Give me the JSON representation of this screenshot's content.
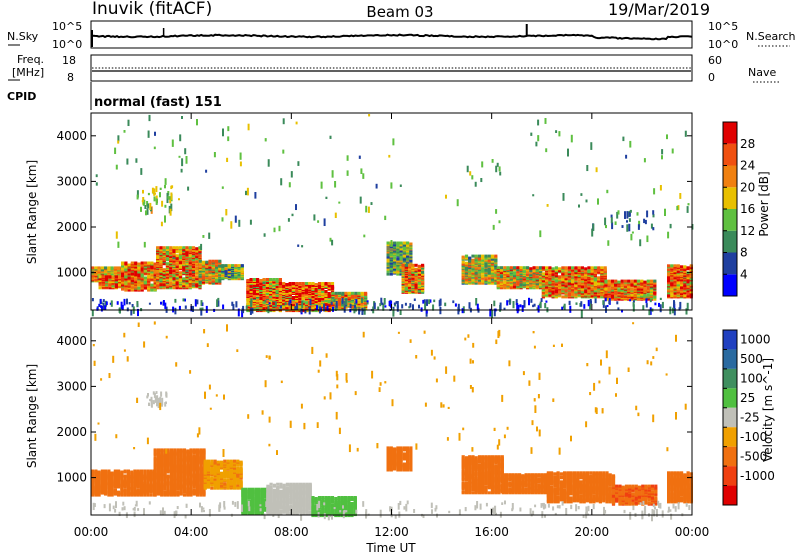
{
  "header": {
    "station": "Inuvik (fitACF)",
    "beam": "Beam 03",
    "date": "19/Mar/2019"
  },
  "panels": {
    "nsky": {
      "left_label": "N.Sky",
      "left_top": "10^5",
      "left_bottom": "10^0",
      "right_label": "N.Search",
      "right_top": "10^5",
      "right_bottom": "10^0"
    },
    "freq": {
      "left_label_1": "Freq.",
      "left_label_2": "[MHz]",
      "left_top": "18",
      "left_bottom": "8",
      "right_label": "Nave",
      "right_top": "60",
      "right_bottom": "0"
    },
    "cpid": {
      "label": "CPID",
      "text": "normal (fast) 151"
    }
  },
  "colors": {
    "power": [
      "#0000ff",
      "#1f3f9f",
      "#3a8a5a",
      "#5fc040",
      "#e8c000",
      "#f08010",
      "#f05010",
      "#e00000"
    ],
    "velocity": [
      "#2040c0",
      "#2a6aa0",
      "#3f8f5f",
      "#50c040",
      "#c0c0b8",
      "#f0a000",
      "#f07010",
      "#f04010",
      "#e00000"
    ]
  },
  "chart_data": [
    {
      "type": "heatmap",
      "name": "Power",
      "ylabel": "Slant Range [km]",
      "xlabel": "Time UT",
      "x_ticks": [
        "00:00",
        "04:00",
        "08:00",
        "12:00",
        "16:00",
        "20:00",
        "00:00"
      ],
      "y_ticks": [
        1000,
        2000,
        3000,
        4000
      ],
      "ylim": [
        180,
        4500
      ],
      "colorbar": {
        "label": "Power [dB]",
        "ticks": [
          "4",
          "8",
          "12",
          "16",
          "20",
          "24",
          "28"
        ],
        "range": [
          0,
          30
        ]
      },
      "regions": [
        {
          "t0": 0.0,
          "t1": 1.2,
          "r0": 850,
          "r1": 1150,
          "v": 18
        },
        {
          "t0": 0.3,
          "t1": 1.2,
          "r0": 700,
          "r1": 950,
          "v": 25
        },
        {
          "t0": 1.2,
          "t1": 2.6,
          "r0": 650,
          "r1": 1250,
          "v": 22
        },
        {
          "t0": 2.6,
          "t1": 4.3,
          "r0": 700,
          "r1": 1600,
          "v": 21
        },
        {
          "t0": 4.3,
          "t1": 5.2,
          "r0": 800,
          "r1": 1300,
          "v": 18
        },
        {
          "t0": 5.2,
          "t1": 6.0,
          "r0": 900,
          "r1": 1200,
          "v": 12
        },
        {
          "t0": 6.2,
          "t1": 7.5,
          "r0": 200,
          "r1": 900,
          "v": 21
        },
        {
          "t0": 7.5,
          "t1": 9.6,
          "r0": 200,
          "r1": 800,
          "v": 24
        },
        {
          "t0": 9.6,
          "t1": 11.0,
          "r0": 250,
          "r1": 600,
          "v": 18
        },
        {
          "t0": 11.8,
          "t1": 12.8,
          "r0": 1000,
          "r1": 1700,
          "v": 12
        },
        {
          "t0": 12.4,
          "t1": 13.2,
          "r0": 600,
          "r1": 1200,
          "v": 20
        },
        {
          "t0": 14.8,
          "t1": 16.2,
          "r0": 800,
          "r1": 1400,
          "v": 16
        },
        {
          "t0": 16.2,
          "t1": 18.0,
          "r0": 700,
          "r1": 1150,
          "v": 18
        },
        {
          "t0": 18.0,
          "t1": 20.5,
          "r0": 500,
          "r1": 1150,
          "v": 22
        },
        {
          "t0": 20.5,
          "t1": 22.5,
          "r0": 450,
          "r1": 850,
          "v": 21
        },
        {
          "t0": 23.0,
          "t1": 24.0,
          "r0": 500,
          "r1": 1200,
          "v": 23
        }
      ],
      "speckles": [
        {
          "t0": 0.0,
          "t1": 24.0,
          "r0": 180,
          "r1": 450,
          "v": 6,
          "n": 260
        },
        {
          "t0": 1.8,
          "t1": 3.2,
          "r0": 2400,
          "r1": 3000,
          "v": 14,
          "n": 40
        },
        {
          "t0": 0.0,
          "t1": 24.0,
          "r0": 1600,
          "r1": 4500,
          "v": 12,
          "n": 170
        },
        {
          "t0": 20.0,
          "t1": 22.5,
          "r0": 1900,
          "r1": 2400,
          "v": 9,
          "n": 30
        }
      ]
    },
    {
      "type": "heatmap",
      "name": "Velocity",
      "ylabel": "Slant Range [km]",
      "xlabel": "Time UT",
      "x_ticks": [
        "00:00",
        "04:00",
        "08:00",
        "12:00",
        "16:00",
        "20:00",
        "00:00"
      ],
      "y_ticks": [
        1000,
        2000,
        3000,
        4000
      ],
      "ylim": [
        180,
        4500
      ],
      "colorbar": {
        "label": "Velocity [m s^-1]",
        "ticks": [
          "1000",
          "500",
          "100",
          "25",
          "-25",
          "-100",
          "-500",
          "-1000"
        ]
      },
      "regions": [
        {
          "t0": 0.0,
          "t1": 2.5,
          "r0": 650,
          "r1": 1200,
          "v": -200
        },
        {
          "t0": 2.5,
          "t1": 4.5,
          "r0": 650,
          "r1": 1650,
          "v": -150
        },
        {
          "t0": 4.5,
          "t1": 6.0,
          "r0": 800,
          "r1": 1400,
          "v": -80
        },
        {
          "t0": 6.0,
          "t1": 7.0,
          "r0": 250,
          "r1": 800,
          "v": 60
        },
        {
          "t0": 7.0,
          "t1": 8.8,
          "r0": 250,
          "r1": 900,
          "v": 0
        },
        {
          "t0": 8.8,
          "t1": 10.6,
          "r0": 200,
          "r1": 600,
          "v": 60
        },
        {
          "t0": 11.8,
          "t1": 12.8,
          "r0": 1200,
          "r1": 1700,
          "v": -300
        },
        {
          "t0": 14.8,
          "t1": 16.4,
          "r0": 700,
          "r1": 1500,
          "v": -300
        },
        {
          "t0": 16.4,
          "t1": 18.2,
          "r0": 700,
          "r1": 1100,
          "v": -300
        },
        {
          "t0": 18.2,
          "t1": 20.8,
          "r0": 500,
          "r1": 1150,
          "v": -300
        },
        {
          "t0": 20.8,
          "t1": 22.5,
          "r0": 450,
          "r1": 850,
          "v": -450
        },
        {
          "t0": 23.0,
          "t1": 24.0,
          "r0": 500,
          "r1": 1150,
          "v": -350
        }
      ],
      "speckles": [
        {
          "t0": 0.0,
          "t1": 24.0,
          "r0": 180,
          "r1": 500,
          "v": 10,
          "n": 180
        },
        {
          "t0": 2.2,
          "t1": 3.0,
          "r0": 2600,
          "r1": 2900,
          "v": 0,
          "n": 25
        },
        {
          "t0": 0.0,
          "t1": 24.0,
          "r0": 1600,
          "r1": 4500,
          "v": -80,
          "n": 150
        }
      ]
    }
  ]
}
